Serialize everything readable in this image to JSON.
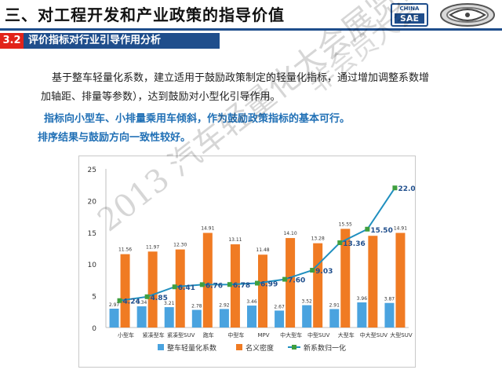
{
  "header": {
    "title": "三、对工程开发和产业政策的指导价值",
    "logo_line1": "CHINA",
    "logo_line2": "SAE"
  },
  "section": {
    "number": "3.2",
    "title": "评价指标对行业引导作用分析"
  },
  "body": {
    "paragraph_line1": "基于整车轻量化系数，建立适用于鼓励政策制定的轻量化指标，通过增加调整系数增",
    "paragraph_line2": "加轴距、排量等参数），达到鼓励对小型化引导作用。",
    "highlight1": "指标向小型车、小排量乘用车倾斜，作为鼓励政策指标的基本可行。",
    "highlight2": "排序结果与鼓励方向一致性较好。"
  },
  "watermark": {
    "text1": "2013 汽车轻量化大会展览会",
    "text2": "非会员大会"
  },
  "colors": {
    "accent": "#1f4e8c",
    "section_number_bg": "#e2231a",
    "highlight_text": "#1f6fb5",
    "series_blue": "#4aa3df",
    "series_orange": "#f07b23",
    "series_line": "#1f8fbf",
    "series_marker": "#3f9f3f"
  },
  "chart_data": {
    "type": "bar",
    "categories": [
      "小型车",
      "紧凑型车",
      "紧凑型SUV",
      "跑车",
      "中型车",
      "MPV",
      "中大型车",
      "中型SUV",
      "大型车",
      "中大型SUV",
      "大型SUV"
    ],
    "series": [
      {
        "name": "整车轻量化系数",
        "type": "bar",
        "color": "#4aa3df",
        "values": [
          2.97,
          3.34,
          3.21,
          2.78,
          2.92,
          3.46,
          2.67,
          3.52,
          2.91,
          3.96,
          3.87
        ]
      },
      {
        "name": "名义密度",
        "type": "bar",
        "color": "#f07b23",
        "values": [
          11.56,
          11.97,
          12.3,
          14.91,
          13.11,
          11.48,
          14.1,
          13.28,
          15.55,
          14.45,
          14.91
        ]
      },
      {
        "name": "新系数归一化",
        "type": "line",
        "color": "#1f8fbf",
        "values": [
          4.24,
          4.85,
          6.41,
          6.76,
          6.78,
          6.99,
          7.6,
          9.03,
          13.36,
          15.5,
          22.0
        ]
      }
    ],
    "value_labels_small": [
      "2.97",
      "3.34",
      "3.21",
      "2.78",
      "2.92",
      "3.46",
      "2.67",
      "3.52",
      "2.91",
      "3.96",
      "3.87"
    ],
    "value_labels_density": [
      "11.56",
      "11.97",
      "12.30",
      "14.91",
      "13.11",
      "11.48",
      "14.10",
      "13.28",
      "15.55",
      "",
      "14.91"
    ],
    "value_labels_line": [
      "4.24",
      "4.85",
      "6.41",
      "6.76",
      "6.78",
      "6.99",
      "7.60",
      "9.03",
      "13.36",
      "15.50",
      "22.00"
    ],
    "y_ticks": [
      "0",
      "5",
      "10",
      "15",
      "20",
      "25"
    ],
    "ylim": [
      0,
      25
    ],
    "grid": false,
    "legend_position": "bottom",
    "title": "",
    "xlabel": "",
    "ylabel": ""
  }
}
